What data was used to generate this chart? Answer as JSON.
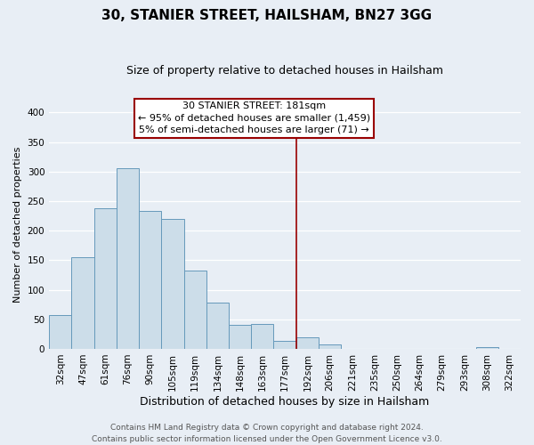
{
  "title": "30, STANIER STREET, HAILSHAM, BN27 3GG",
  "subtitle": "Size of property relative to detached houses in Hailsham",
  "xlabel": "Distribution of detached houses by size in Hailsham",
  "ylabel": "Number of detached properties",
  "bar_labels": [
    "32sqm",
    "47sqm",
    "61sqm",
    "76sqm",
    "90sqm",
    "105sqm",
    "119sqm",
    "134sqm",
    "148sqm",
    "163sqm",
    "177sqm",
    "192sqm",
    "206sqm",
    "221sqm",
    "235sqm",
    "250sqm",
    "264sqm",
    "279sqm",
    "293sqm",
    "308sqm",
    "322sqm"
  ],
  "bar_heights": [
    57,
    155,
    238,
    305,
    233,
    220,
    133,
    78,
    41,
    42,
    14,
    20,
    7,
    0,
    0,
    0,
    0,
    0,
    0,
    3,
    0
  ],
  "bar_color": "#ccdde9",
  "bar_edge_color": "#6699bb",
  "annotation_line_x_label": "177sqm",
  "annotation_line_color": "#990000",
  "annotation_box_text": "30 STANIER STREET: 181sqm\n← 95% of detached houses are smaller (1,459)\n5% of semi-detached houses are larger (71) →",
  "ylim": [
    0,
    420
  ],
  "yticks": [
    0,
    50,
    100,
    150,
    200,
    250,
    300,
    350,
    400
  ],
  "footer_line1": "Contains HM Land Registry data © Crown copyright and database right 2024.",
  "footer_line2": "Contains public sector information licensed under the Open Government Licence v3.0.",
  "bg_color": "#e8eef5",
  "plot_bg_color": "#e8eef5",
  "grid_color": "#ffffff",
  "title_fontsize": 11,
  "subtitle_fontsize": 9,
  "ylabel_fontsize": 8,
  "xlabel_fontsize": 9,
  "tick_fontsize": 7.5,
  "footer_fontsize": 6.5,
  "annot_fontsize": 8
}
